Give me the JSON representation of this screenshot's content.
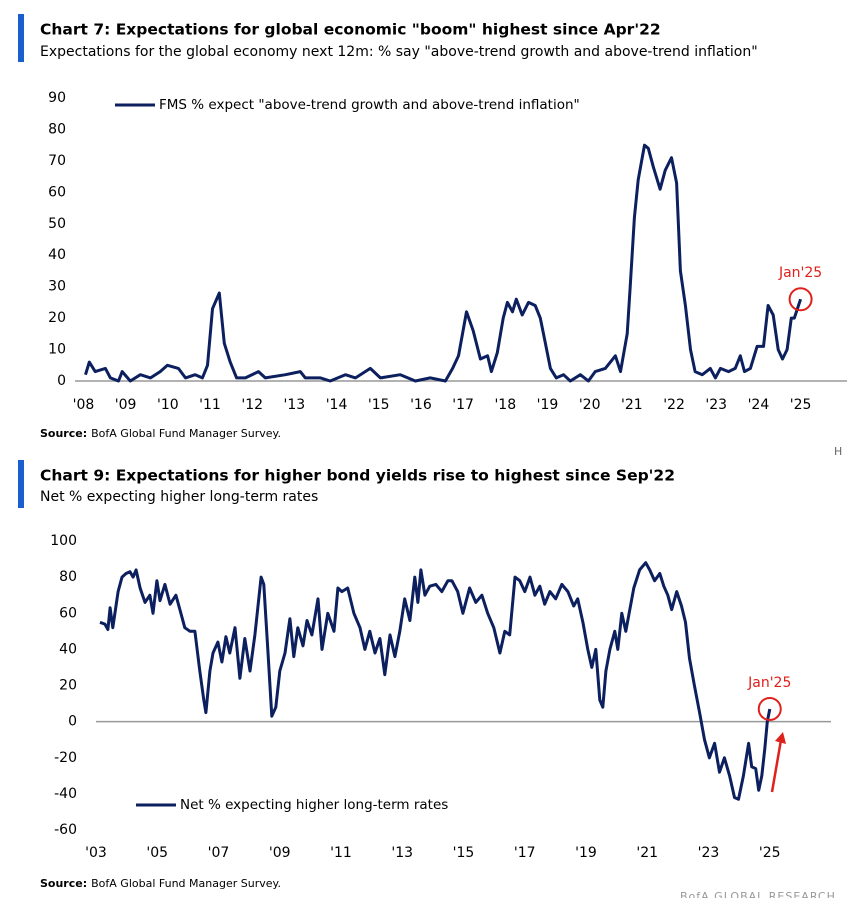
{
  "chart_data": [
    {
      "type": "line",
      "title": "Chart 7: Expectations for global economic \"boom\" highest since Apr'22",
      "subtitle": "Expectations for the global economy next 12m: % say \"above-trend growth and above-trend inflation\"",
      "source_label": "Source:",
      "source": "BofA Global Fund Manager Survey.",
      "legend": "upper left",
      "annotation": "Jan'25",
      "xlim": [
        2007.8,
        2026.1
      ],
      "xticks": [
        {
          "value": 2008,
          "label": "'08"
        },
        {
          "value": 2009,
          "label": "'09"
        },
        {
          "value": 2010,
          "label": "'10"
        },
        {
          "value": 2011,
          "label": "'11"
        },
        {
          "value": 2012,
          "label": "'12"
        },
        {
          "value": 2013,
          "label": "'13"
        },
        {
          "value": 2014,
          "label": "'14"
        },
        {
          "value": 2015,
          "label": "'15"
        },
        {
          "value": 2016,
          "label": "'16"
        },
        {
          "value": 2017,
          "label": "'17"
        },
        {
          "value": 2018,
          "label": "'18"
        },
        {
          "value": 2019,
          "label": "'19"
        },
        {
          "value": 2020,
          "label": "'20"
        },
        {
          "value": 2021,
          "label": "'21"
        },
        {
          "value": 2022,
          "label": "'22"
        },
        {
          "value": 2023,
          "label": "'23"
        },
        {
          "value": 2024,
          "label": "'24"
        },
        {
          "value": 2025,
          "label": "'25"
        }
      ],
      "ylim": [
        0,
        90
      ],
      "yticks": [
        0,
        10,
        20,
        30,
        40,
        50,
        60,
        70,
        80,
        90
      ],
      "series": [
        {
          "name": "FMS % expect \"above-trend growth and above-trend inflation\"",
          "color": "#0c1f5e",
          "x": [
            2008.05,
            2008.14,
            2008.28,
            2008.52,
            2008.64,
            2008.83,
            2008.92,
            2009.11,
            2009.35,
            2009.59,
            2009.82,
            2009.99,
            2010.25,
            2010.42,
            2010.65,
            2010.82,
            2010.94,
            2011.06,
            2011.22,
            2011.34,
            2011.48,
            2011.63,
            2011.84,
            2012.15,
            2012.31,
            2012.79,
            2013.14,
            2013.26,
            2013.62,
            2013.85,
            2014.21,
            2014.45,
            2014.8,
            2015.04,
            2015.51,
            2015.87,
            2016.22,
            2016.58,
            2016.75,
            2016.89,
            2017.08,
            2017.24,
            2017.41,
            2017.58,
            2017.67,
            2017.81,
            2017.95,
            2018.05,
            2018.17,
            2018.26,
            2018.4,
            2018.55,
            2018.71,
            2018.83,
            2018.95,
            2019.07,
            2019.21,
            2019.38,
            2019.54,
            2019.78,
            2019.97,
            2020.13,
            2020.37,
            2020.61,
            2020.73,
            2020.89,
            2020.96,
            2021.06,
            2021.15,
            2021.3,
            2021.39,
            2021.51,
            2021.67,
            2021.79,
            2021.94,
            2022.06,
            2022.15,
            2022.27,
            2022.39,
            2022.5,
            2022.67,
            2022.86,
            2022.98,
            2023.1,
            2023.29,
            2023.45,
            2023.57,
            2023.67,
            2023.81,
            2023.97,
            2024.12,
            2024.23,
            2024.35,
            2024.47,
            2024.57,
            2024.68,
            2024.78,
            2024.85,
            2025.0
          ],
          "values": [
            2,
            6,
            3,
            4,
            1,
            0,
            3,
            0,
            2,
            1,
            3,
            5,
            4,
            1,
            2,
            1,
            5,
            23,
            28,
            12,
            6,
            1,
            1,
            3,
            1,
            2,
            3,
            1,
            1,
            0,
            2,
            1,
            4,
            1,
            2,
            0,
            1,
            0,
            4,
            8,
            22,
            16,
            7,
            8,
            3,
            9,
            20,
            25,
            22,
            26,
            21,
            25,
            24,
            20,
            12,
            4,
            1,
            2,
            0,
            2,
            0,
            3,
            4,
            8,
            3,
            15,
            30,
            52,
            64,
            75,
            74,
            68,
            61,
            67,
            71,
            63,
            35,
            24,
            10,
            3,
            2,
            4,
            1,
            4,
            3,
            4,
            8,
            3,
            4,
            11,
            11,
            24,
            21,
            10,
            7,
            10,
            20,
            20,
            26
          ]
        }
      ]
    },
    {
      "type": "line",
      "title": "Chart 9: Expectations for higher bond yields rise to highest since Sep'22",
      "subtitle": "Net % expecting higher long-term rates",
      "source_label": "Source:",
      "source": "BofA Global Fund Manager Survey.",
      "legend": "lower left",
      "annotation": "Jan'25",
      "xlim": [
        2003,
        2027
      ],
      "xticks": [
        {
          "value": 2003,
          "label": "'03"
        },
        {
          "value": 2005,
          "label": "'05"
        },
        {
          "value": 2007,
          "label": "'07"
        },
        {
          "value": 2009,
          "label": "'09"
        },
        {
          "value": 2011,
          "label": "'11"
        },
        {
          "value": 2013,
          "label": "'13"
        },
        {
          "value": 2015,
          "label": "'15"
        },
        {
          "value": 2017,
          "label": "'17"
        },
        {
          "value": 2019,
          "label": "'19"
        },
        {
          "value": 2021,
          "label": "'21"
        },
        {
          "value": 2023,
          "label": "'23"
        },
        {
          "value": 2025,
          "label": "'25"
        }
      ],
      "ylim": [
        -60,
        100
      ],
      "yticks": [
        -60,
        -40,
        -20,
        0,
        20,
        40,
        60,
        80,
        100
      ],
      "series": [
        {
          "name": "Net % expecting higher long-term rates",
          "color": "#0c1f5e",
          "x": [
            2003.13,
            2003.29,
            2003.39,
            2003.46,
            2003.55,
            2003.72,
            2003.85,
            2003.98,
            2004.11,
            2004.21,
            2004.31,
            2004.44,
            2004.6,
            2004.76,
            2004.86,
            2004.99,
            2005.09,
            2005.25,
            2005.42,
            2005.61,
            2005.74,
            2005.9,
            2006.07,
            2006.23,
            2006.39,
            2006.52,
            2006.59,
            2006.72,
            2006.82,
            2006.98,
            2007.11,
            2007.24,
            2007.37,
            2007.54,
            2007.7,
            2007.86,
            2008.03,
            2008.19,
            2008.29,
            2008.39,
            2008.48,
            2008.61,
            2008.74,
            2008.87,
            2009.0,
            2009.17,
            2009.33,
            2009.46,
            2009.59,
            2009.76,
            2009.89,
            2010.05,
            2010.25,
            2010.38,
            2010.57,
            2010.77,
            2010.9,
            2011.03,
            2011.22,
            2011.42,
            2011.62,
            2011.78,
            2011.94,
            2012.11,
            2012.27,
            2012.43,
            2012.6,
            2012.76,
            2012.92,
            2013.08,
            2013.25,
            2013.41,
            2013.51,
            2013.61,
            2013.74,
            2013.9,
            2014.1,
            2014.29,
            2014.49,
            2014.62,
            2014.81,
            2014.98,
            2015.2,
            2015.4,
            2015.6,
            2015.79,
            2015.99,
            2016.19,
            2016.35,
            2016.51,
            2016.68,
            2016.84,
            2017.0,
            2017.17,
            2017.33,
            2017.49,
            2017.65,
            2017.82,
            2018.01,
            2018.21,
            2018.41,
            2018.6,
            2018.73,
            2018.9,
            2019.06,
            2019.19,
            2019.32,
            2019.45,
            2019.55,
            2019.65,
            2019.78,
            2019.94,
            2020.04,
            2020.17,
            2020.3,
            2020.43,
            2020.56,
            2020.75,
            2020.95,
            2021.08,
            2021.24,
            2021.41,
            2021.54,
            2021.67,
            2021.8,
            2021.96,
            2022.12,
            2022.25,
            2022.38,
            2022.54,
            2022.71,
            2022.87,
            2023.03,
            2023.2,
            2023.36,
            2023.52,
            2023.69,
            2023.85,
            2023.98,
            2024.14,
            2024.31,
            2024.41,
            2024.54,
            2024.64,
            2024.74,
            2024.84,
            2024.92,
            2025.0
          ],
          "values": [
            55,
            54,
            51,
            63,
            52,
            72,
            80,
            82,
            83,
            80,
            84,
            74,
            66,
            70,
            60,
            78,
            67,
            76,
            65,
            70,
            62,
            52,
            50,
            50,
            28,
            12,
            5,
            28,
            38,
            44,
            33,
            47,
            38,
            52,
            24,
            46,
            28,
            48,
            64,
            80,
            76,
            40,
            3,
            8,
            28,
            38,
            57,
            36,
            52,
            42,
            56,
            48,
            68,
            40,
            60,
            50,
            74,
            72,
            74,
            60,
            52,
            40,
            50,
            38,
            46,
            26,
            48,
            36,
            50,
            68,
            56,
            80,
            66,
            84,
            70,
            75,
            76,
            72,
            78,
            78,
            72,
            60,
            74,
            66,
            70,
            60,
            52,
            38,
            50,
            48,
            80,
            78,
            72,
            80,
            70,
            75,
            65,
            72,
            68,
            76,
            72,
            64,
            68,
            55,
            40,
            30,
            40,
            12,
            8,
            28,
            40,
            50,
            40,
            60,
            50,
            62,
            74,
            84,
            88,
            84,
            78,
            82,
            75,
            70,
            62,
            72,
            64,
            55,
            35,
            20,
            5,
            -10,
            -20,
            -12,
            -28,
            -20,
            -30,
            -42,
            -43,
            -30,
            -12,
            -25,
            -26,
            -38,
            -30,
            -15,
            0,
            7
          ]
        }
      ]
    }
  ],
  "corner_mark": "H",
  "footer": "BofA GLOBAL RESEARCH"
}
